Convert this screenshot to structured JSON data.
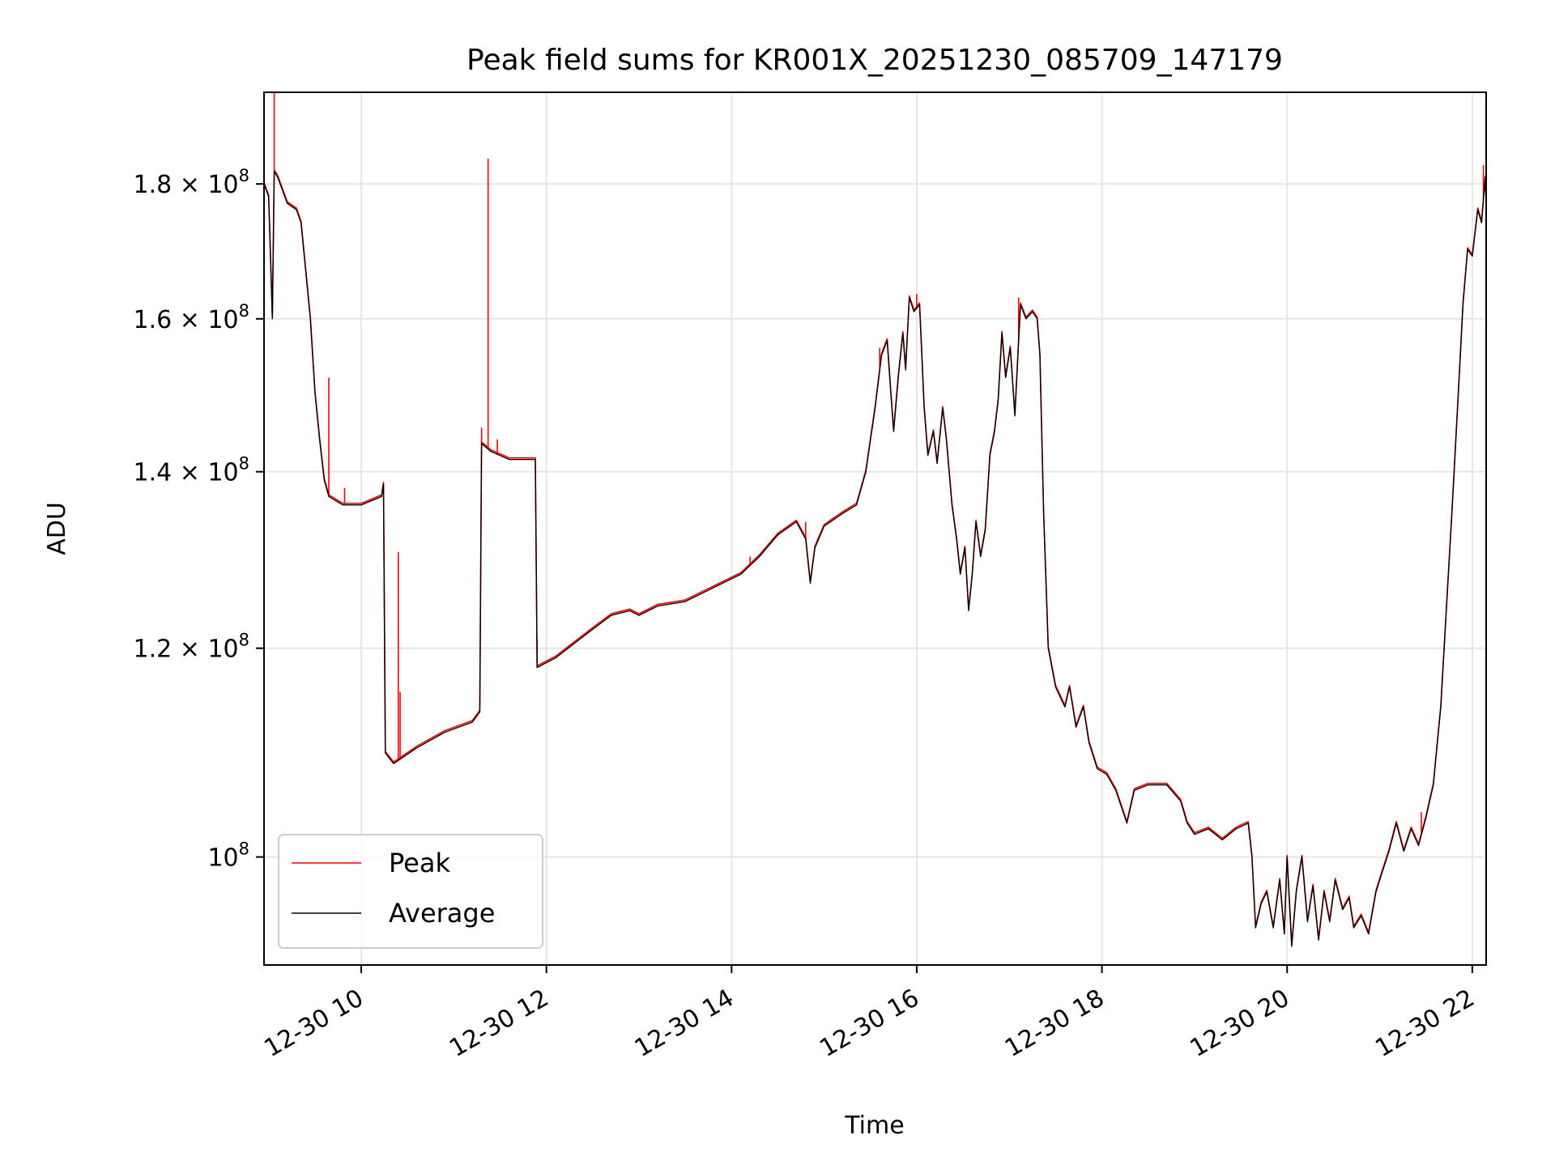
{
  "chart_data": {
    "type": "line",
    "title": "Peak field sums for KR001X_20251230_085709_147179",
    "xlabel": "Time",
    "ylabel": "ADU",
    "y_scale": "log",
    "ylim": [
      91000000,
      195000000
    ],
    "xlim_hours": [
      8.95,
      22.15
    ],
    "grid": true,
    "x_ticks": [
      {
        "hour": 10,
        "label": "12-30 10"
      },
      {
        "hour": 12,
        "label": "12-30 12"
      },
      {
        "hour": 14,
        "label": "12-30 14"
      },
      {
        "hour": 16,
        "label": "12-30 16"
      },
      {
        "hour": 18,
        "label": "12-30 18"
      },
      {
        "hour": 20,
        "label": "12-30 20"
      },
      {
        "hour": 22,
        "label": "12-30 22"
      }
    ],
    "y_ticks": [
      {
        "value": 100000000,
        "mantissa": "",
        "exponent": "8",
        "base": "10"
      },
      {
        "value": 120000000,
        "mantissa": "1.2",
        "exponent": "8",
        "base": "10"
      },
      {
        "value": 140000000,
        "mantissa": "1.4",
        "exponent": "8",
        "base": "10"
      },
      {
        "value": 160000000,
        "mantissa": "1.6",
        "exponent": "8",
        "base": "10"
      },
      {
        "value": 180000000,
        "mantissa": "1.8",
        "exponent": "8",
        "base": "10"
      }
    ],
    "legend": {
      "placement": "lower-left",
      "entries": [
        {
          "label": "Peak",
          "color": "#ff0000"
        },
        {
          "label": "Average",
          "color": "#000000"
        }
      ]
    },
    "series": [
      {
        "name": "Average",
        "color": "#000000",
        "points": [
          [
            8.95,
            180000000
          ],
          [
            9.0,
            178000000
          ],
          [
            9.04,
            160000000
          ],
          [
            9.06,
            182000000
          ],
          [
            9.1,
            181000000
          ],
          [
            9.2,
            177000000
          ],
          [
            9.3,
            176000000
          ],
          [
            9.35,
            174000000
          ],
          [
            9.45,
            160000000
          ],
          [
            9.5,
            150000000
          ],
          [
            9.55,
            144000000
          ],
          [
            9.6,
            139000000
          ],
          [
            9.65,
            137000000
          ],
          [
            9.8,
            136000000
          ],
          [
            10.0,
            136000000
          ],
          [
            10.22,
            137000000
          ],
          [
            10.24,
            138500000
          ],
          [
            10.26,
            109500000
          ],
          [
            10.35,
            108500000
          ],
          [
            10.6,
            110000000
          ],
          [
            10.9,
            111500000
          ],
          [
            11.2,
            112500000
          ],
          [
            11.28,
            113500000
          ],
          [
            11.3,
            143500000
          ],
          [
            11.4,
            142500000
          ],
          [
            11.6,
            141500000
          ],
          [
            11.85,
            141500000
          ],
          [
            11.88,
            141500000
          ],
          [
            11.9,
            118000000
          ],
          [
            12.0,
            118500000
          ],
          [
            12.1,
            119000000
          ],
          [
            12.3,
            120500000
          ],
          [
            12.5,
            122000000
          ],
          [
            12.7,
            123500000
          ],
          [
            12.9,
            124000000
          ],
          [
            13.0,
            123500000
          ],
          [
            13.2,
            124500000
          ],
          [
            13.5,
            125000000
          ],
          [
            13.7,
            126000000
          ],
          [
            13.9,
            127000000
          ],
          [
            14.1,
            128000000
          ],
          [
            14.3,
            130000000
          ],
          [
            14.5,
            132500000
          ],
          [
            14.7,
            134000000
          ],
          [
            14.8,
            132000000
          ],
          [
            14.85,
            127000000
          ],
          [
            14.9,
            131000000
          ],
          [
            15.0,
            133500000
          ],
          [
            15.2,
            135000000
          ],
          [
            15.35,
            136000000
          ],
          [
            15.45,
            140000000
          ],
          [
            15.55,
            148000000
          ],
          [
            15.62,
            155000000
          ],
          [
            15.68,
            157000000
          ],
          [
            15.72,
            150000000
          ],
          [
            15.75,
            145000000
          ],
          [
            15.8,
            152000000
          ],
          [
            15.85,
            158000000
          ],
          [
            15.88,
            153000000
          ],
          [
            15.92,
            163000000
          ],
          [
            15.97,
            161000000
          ],
          [
            16.03,
            162000000
          ],
          [
            16.08,
            148000000
          ],
          [
            16.12,
            142000000
          ],
          [
            16.18,
            145000000
          ],
          [
            16.22,
            141000000
          ],
          [
            16.28,
            148000000
          ],
          [
            16.32,
            144000000
          ],
          [
            16.38,
            136000000
          ],
          [
            16.43,
            132000000
          ],
          [
            16.47,
            128000000
          ],
          [
            16.52,
            131000000
          ],
          [
            16.56,
            124000000
          ],
          [
            16.6,
            128000000
          ],
          [
            16.64,
            134000000
          ],
          [
            16.69,
            130000000
          ],
          [
            16.74,
            133000000
          ],
          [
            16.79,
            142000000
          ],
          [
            16.84,
            145000000
          ],
          [
            16.88,
            149000000
          ],
          [
            16.92,
            158000000
          ],
          [
            16.96,
            152000000
          ],
          [
            17.01,
            156000000
          ],
          [
            17.06,
            147000000
          ],
          [
            17.12,
            162000000
          ],
          [
            17.18,
            160000000
          ],
          [
            17.25,
            161000000
          ],
          [
            17.3,
            160000000
          ],
          [
            17.33,
            155000000
          ],
          [
            17.37,
            135000000
          ],
          [
            17.42,
            120000000
          ],
          [
            17.5,
            116000000
          ],
          [
            17.6,
            114000000
          ],
          [
            17.65,
            116000000
          ],
          [
            17.72,
            112000000
          ],
          [
            17.8,
            114000000
          ],
          [
            17.86,
            110500000
          ],
          [
            17.95,
            108000000
          ],
          [
            18.05,
            107500000
          ],
          [
            18.15,
            106000000
          ],
          [
            18.27,
            103000000
          ],
          [
            18.35,
            106000000
          ],
          [
            18.5,
            106500000
          ],
          [
            18.7,
            106500000
          ],
          [
            18.85,
            105000000
          ],
          [
            18.92,
            103000000
          ],
          [
            19.0,
            102000000
          ],
          [
            19.15,
            102500000
          ],
          [
            19.3,
            101500000
          ],
          [
            19.45,
            102500000
          ],
          [
            19.58,
            103000000
          ],
          [
            19.62,
            100000000
          ],
          [
            19.66,
            94000000
          ],
          [
            19.72,
            96000000
          ],
          [
            19.78,
            97000000
          ],
          [
            19.85,
            94000000
          ],
          [
            19.92,
            98000000
          ],
          [
            19.97,
            93500000
          ],
          [
            20.0,
            100000000
          ],
          [
            20.05,
            92500000
          ],
          [
            20.1,
            97000000
          ],
          [
            20.16,
            100000000
          ],
          [
            20.22,
            94500000
          ],
          [
            20.28,
            97500000
          ],
          [
            20.34,
            93000000
          ],
          [
            20.4,
            97000000
          ],
          [
            20.46,
            94500000
          ],
          [
            20.52,
            98000000
          ],
          [
            20.6,
            95500000
          ],
          [
            20.67,
            96500000
          ],
          [
            20.72,
            94000000
          ],
          [
            20.8,
            95000000
          ],
          [
            20.88,
            93500000
          ],
          [
            20.96,
            97000000
          ],
          [
            21.02,
            98500000
          ],
          [
            21.1,
            100500000
          ],
          [
            21.18,
            103000000
          ],
          [
            21.26,
            100500000
          ],
          [
            21.34,
            102500000
          ],
          [
            21.42,
            101000000
          ],
          [
            21.5,
            103500000
          ],
          [
            21.58,
            106500000
          ],
          [
            21.66,
            114000000
          ],
          [
            21.72,
            124000000
          ],
          [
            21.78,
            135000000
          ],
          [
            21.85,
            150000000
          ],
          [
            21.9,
            162000000
          ],
          [
            21.95,
            170000000
          ],
          [
            22.0,
            169000000
          ],
          [
            22.06,
            176000000
          ],
          [
            22.1,
            174000000
          ],
          [
            22.14,
            181000000
          ],
          [
            22.15,
            177000000
          ]
        ]
      },
      {
        "name": "Peak",
        "color": "#ff0000",
        "spikes": [
          [
            9.06,
            195000000
          ],
          [
            9.65,
            152000000
          ],
          [
            9.82,
            138000000
          ],
          [
            10.4,
            130500000
          ],
          [
            10.42,
            115500000
          ],
          [
            11.3,
            145500000
          ],
          [
            11.37,
            184000000
          ],
          [
            11.47,
            144000000
          ],
          [
            11.9,
            121000000
          ],
          [
            12.2,
            120000000
          ],
          [
            14.2,
            130000000
          ],
          [
            14.8,
            134000000
          ],
          [
            15.6,
            156000000
          ],
          [
            16.0,
            163500000
          ],
          [
            17.1,
            163000000
          ],
          [
            21.45,
            104000000
          ],
          [
            22.12,
            183000000
          ]
        ]
      }
    ]
  }
}
